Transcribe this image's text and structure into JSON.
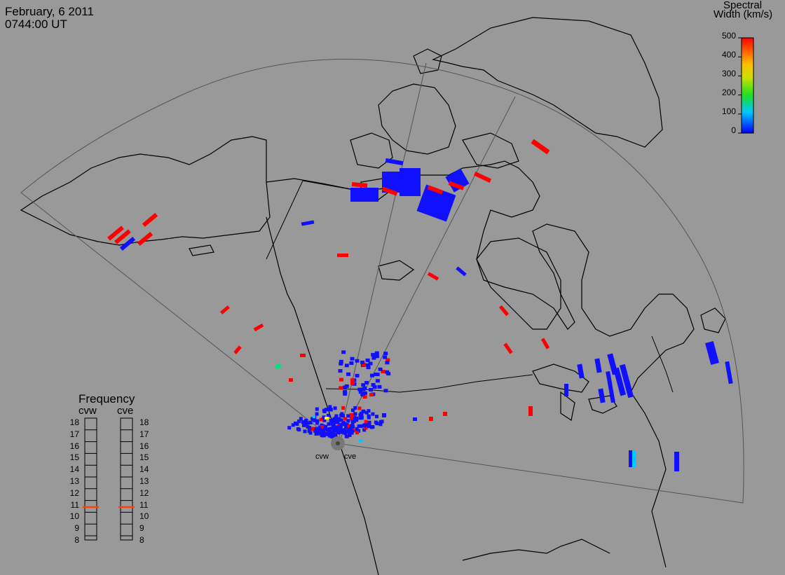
{
  "header": {
    "date": "February, 6 2011",
    "time": "0744:00 UT"
  },
  "colorbar": {
    "title_line1": "Spectral",
    "title_line2": "Width (km/s)",
    "ticks": [
      "500",
      "400",
      "300",
      "200",
      "100",
      "0"
    ],
    "colors": [
      "#ff0000",
      "#ffd200",
      "#20e020",
      "#00e0e0",
      "#0000ff"
    ]
  },
  "frequency": {
    "title": "Frequency",
    "radars": [
      "cvw",
      "cve"
    ],
    "scale": [
      "18",
      "17",
      "16",
      "15",
      "14",
      "13",
      "12",
      "11",
      "10",
      "9",
      "8"
    ],
    "values_mhz": [
      10.8,
      10.8
    ],
    "marker_color": "#ff4000"
  },
  "sites": {
    "cvw": "cvw",
    "cve": "cve"
  },
  "colors": {
    "background": "#999999",
    "low": "#1010ff",
    "high": "#ff0000",
    "cyan": "#00c8ff",
    "green": "#00e080",
    "yellow": "#ffff00"
  }
}
